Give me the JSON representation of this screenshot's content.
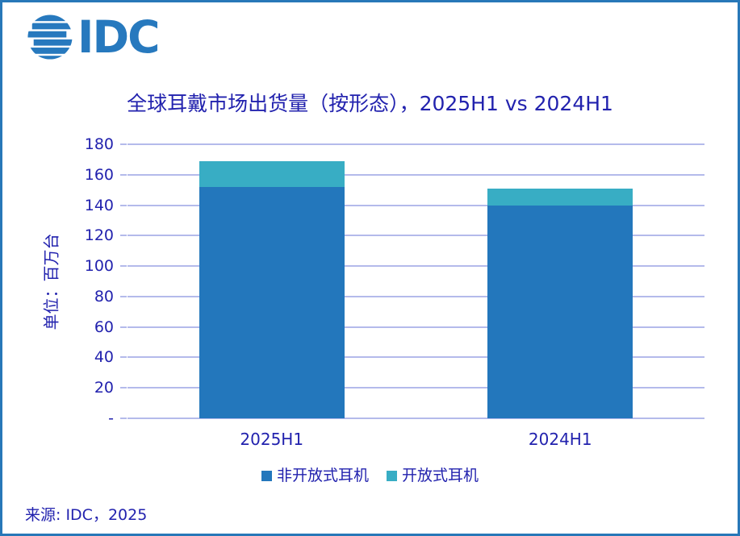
{
  "logo": {
    "text": "IDC",
    "color": "#2779BE"
  },
  "title": "全球耳戴市场出货量（按形态），2025H1 vs 2024H1",
  "source": "来源: IDC，2025",
  "y_axis": {
    "title": "单位：百万台",
    "tick_labels": [
      "180",
      "160",
      "140",
      "120",
      "100",
      "80",
      "60",
      "40",
      "20",
      "-"
    ]
  },
  "colors": {
    "frame_border": "#2878B8",
    "text_navy": "#2222AE",
    "gridline": "#B4BAEB",
    "bar_blue": "#2377BC",
    "bar_teal": "#38ADC4"
  },
  "chart_data": {
    "type": "bar",
    "stacked": true,
    "title": "全球耳戴市场出货量（按形态），2025H1 vs 2024H1",
    "categories": [
      "2025H1",
      "2024H1"
    ],
    "series": [
      {
        "name": "非开放式耳机",
        "color": "#2377BC",
        "values": [
          152,
          140
        ]
      },
      {
        "name": "开放式耳机",
        "color": "#38ADC4",
        "values": [
          17,
          11
        ]
      }
    ],
    "totals": [
      169,
      151
    ],
    "xlabel": "",
    "ylabel": "单位：百万台",
    "ylim": [
      0,
      180
    ],
    "ytick_step": 20,
    "grid": true,
    "legend_position": "bottom"
  }
}
